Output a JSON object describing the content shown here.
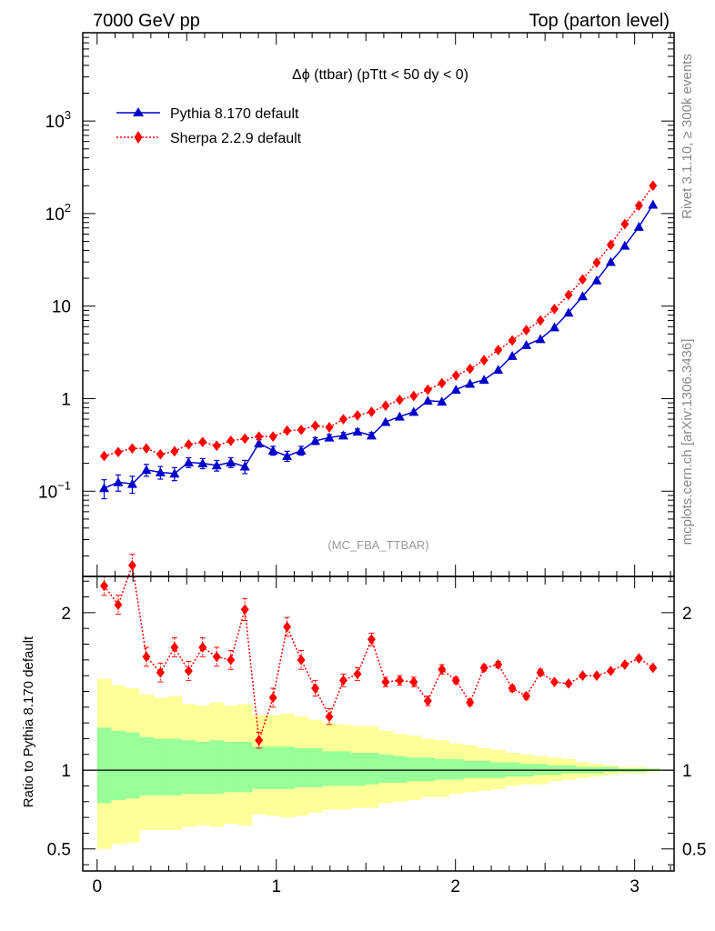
{
  "header": {
    "left_label": "7000 GeV pp",
    "right_label": "Top (parton level)"
  },
  "side_labels": {
    "rivet": "Rivet 3.1.10, ≥ 300k events",
    "mcplots": "mcplots.cern.ch [arXiv:1306.3436]"
  },
  "chart_data": [
    {
      "type": "line",
      "title": "Δϕ (ttbar) (pTtt < 50 dy < 0)",
      "watermark": "(MC_FBA_TTBAR)",
      "yscale": "log",
      "xlim": [
        -0.08,
        3.22
      ],
      "ylim": [
        0.012,
        9000
      ],
      "y_tick_labels": [
        {
          "value": 1000,
          "base": "10",
          "exp": "3"
        },
        {
          "value": 100,
          "base": "10",
          "exp": "2"
        },
        {
          "value": 10,
          "base": "10",
          "exp": ""
        },
        {
          "value": 1,
          "base": "1",
          "exp": ""
        },
        {
          "value": 0.1,
          "base": "10",
          "exp": "−1"
        }
      ],
      "legend_position": "top-left",
      "series": [
        {
          "name": "Pythia 8.170 default",
          "color": "#0000cc",
          "marker": "triangle",
          "line": "solid",
          "x": [
            0.0393,
            0.1178,
            0.1963,
            0.2749,
            0.3534,
            0.432,
            0.5105,
            0.589,
            0.6676,
            0.7461,
            0.8247,
            0.9032,
            0.9817,
            1.0603,
            1.1388,
            1.2174,
            1.2959,
            1.3744,
            1.453,
            1.5315,
            1.6101,
            1.6886,
            1.7671,
            1.8457,
            1.9242,
            2.0028,
            2.0813,
            2.1598,
            2.2384,
            2.3169,
            2.3955,
            2.474,
            2.5525,
            2.6311,
            2.7096,
            2.7882,
            2.8667,
            2.9452,
            3.0238,
            3.1023
          ],
          "y": [
            0.108,
            0.125,
            0.12,
            0.17,
            0.16,
            0.155,
            0.205,
            0.2,
            0.19,
            0.205,
            0.185,
            0.33,
            0.275,
            0.24,
            0.275,
            0.35,
            0.38,
            0.4,
            0.44,
            0.4,
            0.56,
            0.64,
            0.72,
            0.95,
            0.93,
            1.25,
            1.45,
            1.6,
            2.05,
            2.9,
            3.8,
            4.4,
            5.9,
            8.5,
            12.8,
            19,
            30,
            45,
            72,
            125
          ],
          "err": [
            0.025,
            0.025,
            0.025,
            0.025,
            0.025,
            0.025,
            0.025,
            0.025,
            0.025,
            0.025,
            0.03,
            0.03,
            0.03,
            0.03,
            0.03,
            0.03,
            0.03,
            0.03,
            0.03,
            0.03,
            0,
            0,
            0,
            0,
            0,
            0,
            0,
            0,
            0,
            0,
            0,
            0,
            0,
            0,
            0,
            0,
            0,
            0,
            0,
            0
          ]
        },
        {
          "name": "Sherpa 2.2.9 default",
          "color": "#ff0000",
          "marker": "diamond",
          "line": "dotted",
          "x": [
            0.0393,
            0.1178,
            0.1963,
            0.2749,
            0.3534,
            0.432,
            0.5105,
            0.589,
            0.6676,
            0.7461,
            0.8247,
            0.9032,
            0.9817,
            1.0603,
            1.1388,
            1.2174,
            1.2959,
            1.3744,
            1.453,
            1.5315,
            1.6101,
            1.6886,
            1.7671,
            1.8457,
            1.9242,
            2.0028,
            2.0813,
            2.1598,
            2.2384,
            2.3169,
            2.3955,
            2.474,
            2.5525,
            2.6311,
            2.7096,
            2.7882,
            2.8667,
            2.9452,
            3.0238,
            3.1023
          ],
          "y": [
            0.24,
            0.265,
            0.29,
            0.29,
            0.25,
            0.27,
            0.32,
            0.34,
            0.31,
            0.35,
            0.37,
            0.39,
            0.39,
            0.45,
            0.46,
            0.51,
            0.49,
            0.6,
            0.66,
            0.72,
            0.84,
            0.97,
            1.07,
            1.25,
            1.47,
            1.78,
            2.1,
            2.6,
            3.35,
            4.25,
            5.5,
            7.0,
            9.3,
            13.2,
            19.4,
            29.5,
            46,
            77,
            122,
            200
          ],
          "err": []
        }
      ]
    },
    {
      "type": "line",
      "ylabel": "Ratio to Pythia 8.170 default",
      "xlim": [
        -0.08,
        3.22
      ],
      "ylim": [
        0.36,
        2.23
      ],
      "x_tick_labels": [
        "0",
        "1",
        "2",
        "3"
      ],
      "y_tick_labels": [
        "0.5",
        "1",
        "2"
      ],
      "reference_line": 1,
      "band_edges": [
        0.0,
        0.0785,
        0.1571,
        0.2356,
        0.3142,
        0.3927,
        0.4712,
        0.5498,
        0.6283,
        0.7069,
        0.7854,
        0.8639,
        0.9425,
        1.021,
        1.0996,
        1.1781,
        1.2566,
        1.3352,
        1.4137,
        1.4923,
        1.5708,
        1.6493,
        1.7279,
        1.8064,
        1.885,
        1.9635,
        2.042,
        2.1206,
        2.1991,
        2.2777,
        2.3562,
        2.4347,
        2.5133,
        2.5918,
        2.6704,
        2.7489,
        2.8274,
        2.906,
        2.9845,
        3.0631,
        3.1416
      ],
      "yellow_band_low": [
        0.5,
        0.53,
        0.54,
        0.62,
        0.62,
        0.62,
        0.64,
        0.65,
        0.64,
        0.66,
        0.65,
        0.72,
        0.71,
        0.7,
        0.71,
        0.73,
        0.75,
        0.75,
        0.76,
        0.76,
        0.79,
        0.8,
        0.81,
        0.83,
        0.83,
        0.85,
        0.86,
        0.87,
        0.88,
        0.9,
        0.91,
        0.91,
        0.93,
        0.94,
        0.95,
        0.96,
        0.97,
        0.98,
        0.98,
        0.99
      ],
      "yellow_band_high": [
        1.58,
        1.54,
        1.52,
        1.48,
        1.46,
        1.47,
        1.42,
        1.41,
        1.43,
        1.41,
        1.42,
        1.35,
        1.35,
        1.36,
        1.34,
        1.32,
        1.3,
        1.29,
        1.28,
        1.28,
        1.25,
        1.23,
        1.22,
        1.2,
        1.19,
        1.17,
        1.16,
        1.14,
        1.13,
        1.11,
        1.1,
        1.09,
        1.08,
        1.07,
        1.05,
        1.04,
        1.03,
        1.02,
        1.02,
        1.01
      ],
      "green_band_low": [
        0.79,
        0.81,
        0.82,
        0.84,
        0.84,
        0.84,
        0.85,
        0.85,
        0.85,
        0.86,
        0.86,
        0.88,
        0.88,
        0.88,
        0.89,
        0.89,
        0.9,
        0.9,
        0.9,
        0.91,
        0.92,
        0.92,
        0.93,
        0.93,
        0.94,
        0.94,
        0.95,
        0.95,
        0.95,
        0.96,
        0.96,
        0.97,
        0.97,
        0.98,
        0.98,
        0.98,
        0.99,
        0.99,
        0.99,
        1.0
      ],
      "green_band_high": [
        1.27,
        1.25,
        1.24,
        1.21,
        1.2,
        1.2,
        1.19,
        1.18,
        1.19,
        1.18,
        1.18,
        1.15,
        1.15,
        1.15,
        1.14,
        1.14,
        1.12,
        1.12,
        1.11,
        1.11,
        1.1,
        1.09,
        1.08,
        1.08,
        1.07,
        1.07,
        1.06,
        1.06,
        1.05,
        1.05,
        1.04,
        1.04,
        1.03,
        1.03,
        1.02,
        1.02,
        1.02,
        1.01,
        1.01,
        1.01
      ],
      "series": [
        {
          "name": "Sherpa 2.2.9 default",
          "color": "#ff0000",
          "marker": "diamond",
          "line": "dotted",
          "x": [
            0.0393,
            0.1178,
            0.1963,
            0.2749,
            0.3534,
            0.432,
            0.5105,
            0.589,
            0.6676,
            0.7461,
            0.8247,
            0.9032,
            0.9817,
            1.0603,
            1.1388,
            1.2174,
            1.2959,
            1.3744,
            1.453,
            1.5315,
            1.6101,
            1.6886,
            1.7671,
            1.8457,
            1.9242,
            2.0028,
            2.0813,
            2.1598,
            2.2384,
            2.3169,
            2.3955,
            2.474,
            2.5525,
            2.6311,
            2.7096,
            2.7882,
            2.8667,
            2.9452,
            3.0238,
            3.1023
          ],
          "y": [
            2.17,
            2.05,
            2.3,
            1.72,
            1.62,
            1.78,
            1.63,
            1.78,
            1.72,
            1.7,
            2.02,
            1.19,
            1.46,
            1.91,
            1.7,
            1.52,
            1.34,
            1.57,
            1.61,
            1.83,
            1.56,
            1.57,
            1.56,
            1.44,
            1.64,
            1.57,
            1.43,
            1.65,
            1.67,
            1.52,
            1.47,
            1.62,
            1.56,
            1.55,
            1.6,
            1.6,
            1.63,
            1.67,
            1.71,
            1.65
          ],
          "err": [
            0.06,
            0.06,
            0.07,
            0.06,
            0.06,
            0.06,
            0.06,
            0.06,
            0.06,
            0.06,
            0.07,
            0.05,
            0.06,
            0.06,
            0.06,
            0.05,
            0.05,
            0.04,
            0.04,
            0.04,
            0.03,
            0.03,
            0.03,
            0.03,
            0.03,
            0.02,
            0.02,
            0.02,
            0.02,
            0.02,
            0.02,
            0.02,
            0.01,
            0.01,
            0.01,
            0.01,
            0.01,
            0.01,
            0.01,
            0.01
          ]
        }
      ]
    }
  ]
}
